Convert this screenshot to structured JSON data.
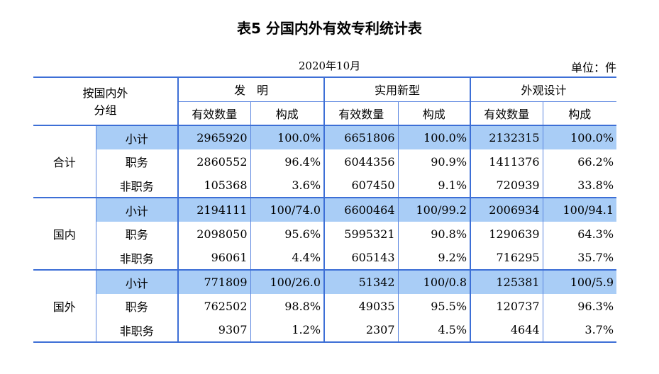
{
  "title": "表5  分国内外有效专利统计表",
  "date": "2020年10月",
  "unit": "单位：件",
  "header": {
    "group_label_line1": "按国内外",
    "group_label_line2": "分组",
    "invention": "发　明",
    "utility": "实用新型",
    "design": "外观设计",
    "valid_count": "有效数量",
    "composition": "构成"
  },
  "groups": [
    {
      "name": "合计",
      "rows": [
        {
          "cat": "小计",
          "inv_n": "2965920",
          "inv_p": "100.0%",
          "uti_n": "6651806",
          "uti_p": "100.0%",
          "des_n": "2132315",
          "des_p": "100.0%"
        },
        {
          "cat": "职务",
          "inv_n": "2860552",
          "inv_p": "96.4%",
          "uti_n": "6044356",
          "uti_p": "90.9%",
          "des_n": "1411376",
          "des_p": "66.2%"
        },
        {
          "cat": "非职务",
          "inv_n": "105368",
          "inv_p": "3.6%",
          "uti_n": "607450",
          "uti_p": "9.1%",
          "des_n": "720939",
          "des_p": "33.8%"
        }
      ]
    },
    {
      "name": "国内",
      "rows": [
        {
          "cat": "小计",
          "inv_n": "2194111",
          "inv_p": "100/74.0",
          "uti_n": "6600464",
          "uti_p": "100/99.2",
          "des_n": "2006934",
          "des_p": "100/94.1"
        },
        {
          "cat": "职务",
          "inv_n": "2098050",
          "inv_p": "95.6%",
          "uti_n": "5995321",
          "uti_p": "90.8%",
          "des_n": "1290639",
          "des_p": "64.3%"
        },
        {
          "cat": "非职务",
          "inv_n": "96061",
          "inv_p": "4.4%",
          "uti_n": "605143",
          "uti_p": "9.2%",
          "des_n": "716295",
          "des_p": "35.7%"
        }
      ]
    },
    {
      "name": "国外",
      "rows": [
        {
          "cat": "小计",
          "inv_n": "771809",
          "inv_p": "100/26.0",
          "uti_n": "51342",
          "uti_p": "100/0.8",
          "des_n": "125381",
          "des_p": "100/5.9"
        },
        {
          "cat": "职务",
          "inv_n": "762502",
          "inv_p": "98.8%",
          "uti_n": "49035",
          "uti_p": "95.5%",
          "des_n": "120737",
          "des_p": "96.3%"
        },
        {
          "cat": "非职务",
          "inv_n": "9307",
          "inv_p": "1.2%",
          "uti_n": "2307",
          "uti_p": "4.5%",
          "des_n": "4644",
          "des_p": "3.7%"
        }
      ]
    }
  ]
}
